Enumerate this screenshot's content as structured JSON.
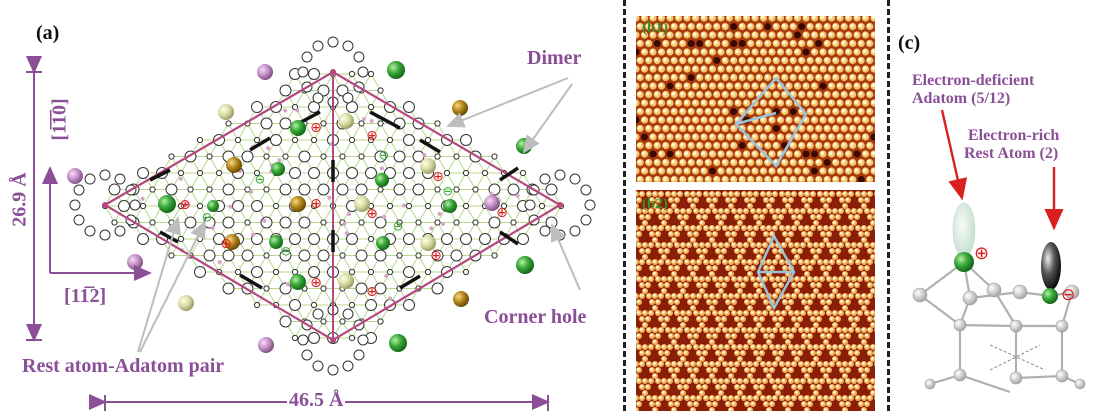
{
  "panel_a": {
    "label": "(a)",
    "dimer": "Dimer",
    "corner_hole": "Corner hole",
    "rest_pair": "Rest atom-Adatom pair",
    "dim_vertical": "26.9 Å",
    "dim_horizontal": "46.5 Å",
    "dir_vertical": "[1̅1̅0]",
    "dir_horizontal": "[11̅2]",
    "symbols": {
      "plus": "⊕",
      "minus": "⊖"
    }
  },
  "panel_b": {
    "b1": "(b1)",
    "b2": "(b2)"
  },
  "panel_c": {
    "label": "(c)",
    "deficient": [
      "Electron-deficient",
      "Adatom  (5/12)"
    ],
    "rich": [
      "Electron-rich",
      "Rest Atom (2)"
    ],
    "plus": "⊕",
    "minus": "⊖"
  },
  "colors": {
    "purple": "#8a4f97",
    "magenta_line": "#b5487f",
    "green_ball": "#39a83a",
    "olive_ball": "#b58a1a",
    "pale_ball": "#d6d8a0",
    "pink_ball": "#c48ec6",
    "stm_red": "#8a1e06",
    "stm_yellow": "#f7e49a",
    "diamond": "#9cc3d8"
  }
}
